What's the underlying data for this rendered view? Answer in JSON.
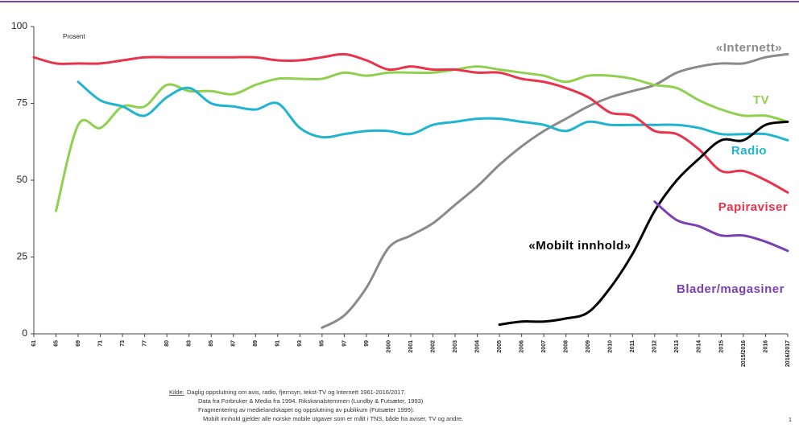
{
  "chart_data": {
    "type": "line",
    "y_label": "Prosent",
    "categories": [
      "61",
      "65",
      "69",
      "71",
      "73",
      "77",
      "80",
      "83",
      "85",
      "87",
      "89",
      "91",
      "93",
      "95",
      "97",
      "99",
      "2000",
      "2001",
      "2002",
      "2003",
      "2004",
      "2005",
      "2006",
      "2007",
      "2008",
      "2009",
      "2010",
      "2011",
      "2012",
      "2013",
      "2014",
      "2015",
      "2015/2016",
      "2016",
      "2016/2017"
    ],
    "ylim": [
      0,
      100
    ],
    "yticks": [
      0,
      25,
      50,
      75,
      100
    ],
    "series": [
      {
        "name": "«Internett»",
        "color": "#8a8a8a",
        "values": [
          null,
          null,
          null,
          null,
          null,
          null,
          null,
          null,
          null,
          null,
          null,
          null,
          null,
          2,
          6,
          15,
          28,
          32,
          36,
          42,
          48,
          55,
          61,
          66,
          70,
          74,
          77,
          79,
          81,
          85,
          87,
          88,
          88,
          90,
          91
        ]
      },
      {
        "name": "TV",
        "color": "#8fd14f",
        "values": [
          null,
          40,
          68,
          67,
          74,
          74,
          81,
          79,
          79,
          78,
          81,
          83,
          83,
          83,
          85,
          84,
          85,
          85,
          85,
          86,
          87,
          86,
          85,
          84,
          82,
          84,
          84,
          83,
          81,
          80,
          76,
          73,
          71,
          71,
          69
        ]
      },
      {
        "name": "Radio",
        "color": "#1fb4cf",
        "values": [
          null,
          null,
          82,
          76,
          74,
          71,
          77,
          80,
          75,
          74,
          73,
          75,
          67,
          64,
          65,
          66,
          66,
          65,
          68,
          69,
          70,
          70,
          69,
          68,
          66,
          69,
          68,
          68,
          68,
          68,
          67,
          65,
          65,
          65,
          63
        ]
      },
      {
        "name": "Papiraviser",
        "color": "#e8334a",
        "values": [
          90,
          88,
          88,
          88,
          89,
          90,
          90,
          90,
          90,
          90,
          90,
          89,
          89,
          90,
          91,
          89,
          86,
          87,
          86,
          86,
          85,
          85,
          83,
          82,
          80,
          77,
          72,
          71,
          66,
          65,
          60,
          53,
          53,
          50,
          46
        ]
      },
      {
        "name": "«Mobilt innhold»",
        "color": "#000000",
        "values": [
          null,
          null,
          null,
          null,
          null,
          null,
          null,
          null,
          null,
          null,
          null,
          null,
          null,
          null,
          null,
          null,
          null,
          null,
          null,
          null,
          null,
          3,
          4,
          4,
          5,
          7,
          15,
          26,
          40,
          50,
          57,
          63,
          63,
          68,
          69
        ]
      },
      {
        "name": "Blader/magasiner",
        "color": "#7b3fb5",
        "values": [
          null,
          null,
          null,
          null,
          null,
          null,
          null,
          null,
          null,
          null,
          null,
          null,
          null,
          null,
          null,
          null,
          null,
          null,
          null,
          null,
          null,
          null,
          null,
          null,
          null,
          null,
          null,
          null,
          43,
          37,
          35,
          32,
          32,
          30,
          27
        ]
      }
    ],
    "notes": {
      "source_label": "Kilde:",
      "lines": [
        "Daglig oppslutning om avis, radio, fjernsyn, tekst-TV og Internett 1961-2016/2017.",
        "Data fra Forbruker & Media fra 1994. Rikskanalstemmen (Lundby & Futsæter, 1993)",
        "Fragmentering av medielandskapet og oppslutning av publikum (Futsæter 1999).",
        "Mobilt innhold gjelder alle norske mobile utgaver som er målt i TNS, både fra aviser, TV og andre."
      ],
      "page_number": "1"
    }
  }
}
